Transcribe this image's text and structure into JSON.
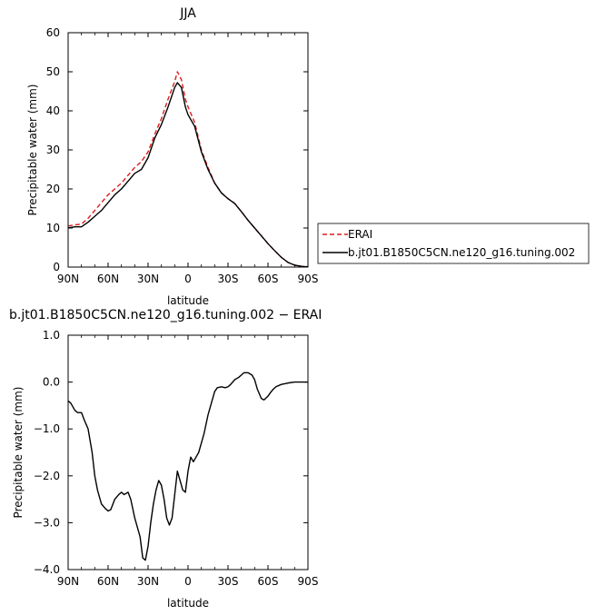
{
  "chart_data": [
    {
      "type": "line",
      "title": "JJA",
      "xlabel": "latitude",
      "ylabel": "Precipitable water (mm)",
      "xlim": [
        90,
        -90
      ],
      "ylim": [
        0,
        60
      ],
      "xticks": [
        90,
        60,
        30,
        0,
        -30,
        -60,
        -90
      ],
      "xtick_labels": [
        "90N",
        "60N",
        "30N",
        "0",
        "30S",
        "60S",
        "90S"
      ],
      "yticks": [
        0,
        10,
        20,
        30,
        40,
        50,
        60
      ],
      "ytick_labels": [
        "0",
        "10",
        "20",
        "30",
        "40",
        "50",
        "60"
      ],
      "grid": false,
      "legend_position": "right",
      "series": [
        {
          "name": "ERAI",
          "color": "#dd1c1c",
          "dash": "dashed",
          "x": [
            90,
            85,
            80,
            75,
            70,
            65,
            60,
            55,
            50,
            45,
            40,
            35,
            30,
            25,
            20,
            15,
            10,
            8,
            5,
            2,
            0,
            -5,
            -10,
            -15,
            -20,
            -25,
            -30,
            -35,
            -40,
            -45,
            -50,
            -55,
            -60,
            -65,
            -70,
            -75,
            -80,
            -85,
            -88,
            -90
          ],
          "y": [
            10.5,
            10.8,
            11.0,
            12.5,
            14.5,
            16.5,
            18.5,
            20.0,
            21.5,
            23.5,
            25.5,
            27.0,
            29.5,
            34.0,
            38.0,
            43.0,
            47.5,
            50.0,
            48.0,
            43.0,
            41.0,
            37.0,
            30.0,
            25.5,
            21.5,
            19.0,
            17.5,
            16.3,
            14.2,
            12.0,
            10.0,
            8.0,
            6.0,
            4.2,
            2.5,
            1.2,
            0.5,
            0.2,
            0.1,
            0.1
          ]
        },
        {
          "name": "b.jt01.B1850C5CN.ne120_g16.tuning.002",
          "color": "#000000",
          "dash": "solid",
          "x": [
            90,
            85,
            80,
            75,
            70,
            65,
            60,
            55,
            50,
            45,
            40,
            35,
            30,
            25,
            20,
            15,
            10,
            8,
            5,
            2,
            0,
            -5,
            -10,
            -15,
            -20,
            -25,
            -30,
            -35,
            -40,
            -45,
            -50,
            -55,
            -60,
            -65,
            -70,
            -75,
            -80,
            -85,
            -88,
            -90
          ],
          "y": [
            10.0,
            10.3,
            10.3,
            11.5,
            13.0,
            14.5,
            16.5,
            18.5,
            20.0,
            22.0,
            24.0,
            25.0,
            28.0,
            33.0,
            36.5,
            41.0,
            46.0,
            47.2,
            46.0,
            41.0,
            39.0,
            36.0,
            29.5,
            25.0,
            21.5,
            19.0,
            17.5,
            16.3,
            14.2,
            12.0,
            10.0,
            8.0,
            6.0,
            4.2,
            2.5,
            1.2,
            0.5,
            0.2,
            0.1,
            0.1
          ]
        }
      ]
    },
    {
      "type": "line",
      "title": "b.jt01.B1850C5CN.ne120_g16.tuning.002 − ERAI",
      "xlabel": "latitude",
      "ylabel": "Precipitable water (mm)",
      "xlim": [
        90,
        -90
      ],
      "ylim": [
        -4.0,
        1.0
      ],
      "xticks": [
        90,
        60,
        30,
        0,
        -30,
        -60,
        -90
      ],
      "xtick_labels": [
        "90N",
        "60N",
        "30N",
        "0",
        "30S",
        "60S",
        "90S"
      ],
      "yticks": [
        1.0,
        0.0,
        -1.0,
        -2.0,
        -3.0,
        -4.0
      ],
      "ytick_labels": [
        "1.0",
        "0.0",
        "−1.0",
        "−2.0",
        "−3.0",
        "−4.0"
      ],
      "grid": false,
      "series": [
        {
          "color": "#000000",
          "dash": "solid",
          "x": [
            90,
            88,
            85,
            83,
            80,
            78,
            75,
            72,
            70,
            68,
            65,
            62,
            60,
            58,
            55,
            52,
            50,
            48,
            45,
            43,
            40,
            38,
            36,
            34,
            32,
            30,
            28,
            26,
            24,
            22,
            20,
            18,
            16,
            14,
            12,
            10,
            8,
            6,
            4,
            2,
            0,
            -2,
            -4,
            -6,
            -8,
            -10,
            -12,
            -15,
            -18,
            -20,
            -22,
            -25,
            -28,
            -30,
            -32,
            -35,
            -38,
            -40,
            -42,
            -45,
            -48,
            -50,
            -52,
            -55,
            -57,
            -60,
            -62,
            -64,
            -66,
            -70,
            -75,
            -80,
            -85,
            -88,
            -90
          ],
          "y": [
            -0.4,
            -0.45,
            -0.6,
            -0.65,
            -0.65,
            -0.8,
            -1.0,
            -1.5,
            -2.0,
            -2.3,
            -2.6,
            -2.7,
            -2.75,
            -2.72,
            -2.5,
            -2.4,
            -2.35,
            -2.4,
            -2.35,
            -2.5,
            -2.9,
            -3.1,
            -3.3,
            -3.75,
            -3.8,
            -3.5,
            -3.0,
            -2.6,
            -2.3,
            -2.1,
            -2.2,
            -2.5,
            -2.9,
            -3.05,
            -2.9,
            -2.4,
            -1.9,
            -2.1,
            -2.3,
            -2.35,
            -1.9,
            -1.6,
            -1.7,
            -1.6,
            -1.5,
            -1.3,
            -1.1,
            -0.7,
            -0.4,
            -0.2,
            -0.12,
            -0.1,
            -0.12,
            -0.1,
            -0.05,
            0.05,
            0.1,
            0.15,
            0.2,
            0.2,
            0.15,
            0.05,
            -0.15,
            -0.35,
            -0.38,
            -0.3,
            -0.22,
            -0.15,
            -0.1,
            -0.05,
            -0.02,
            0.0,
            0.0,
            0.0,
            0.0
          ]
        }
      ]
    }
  ]
}
